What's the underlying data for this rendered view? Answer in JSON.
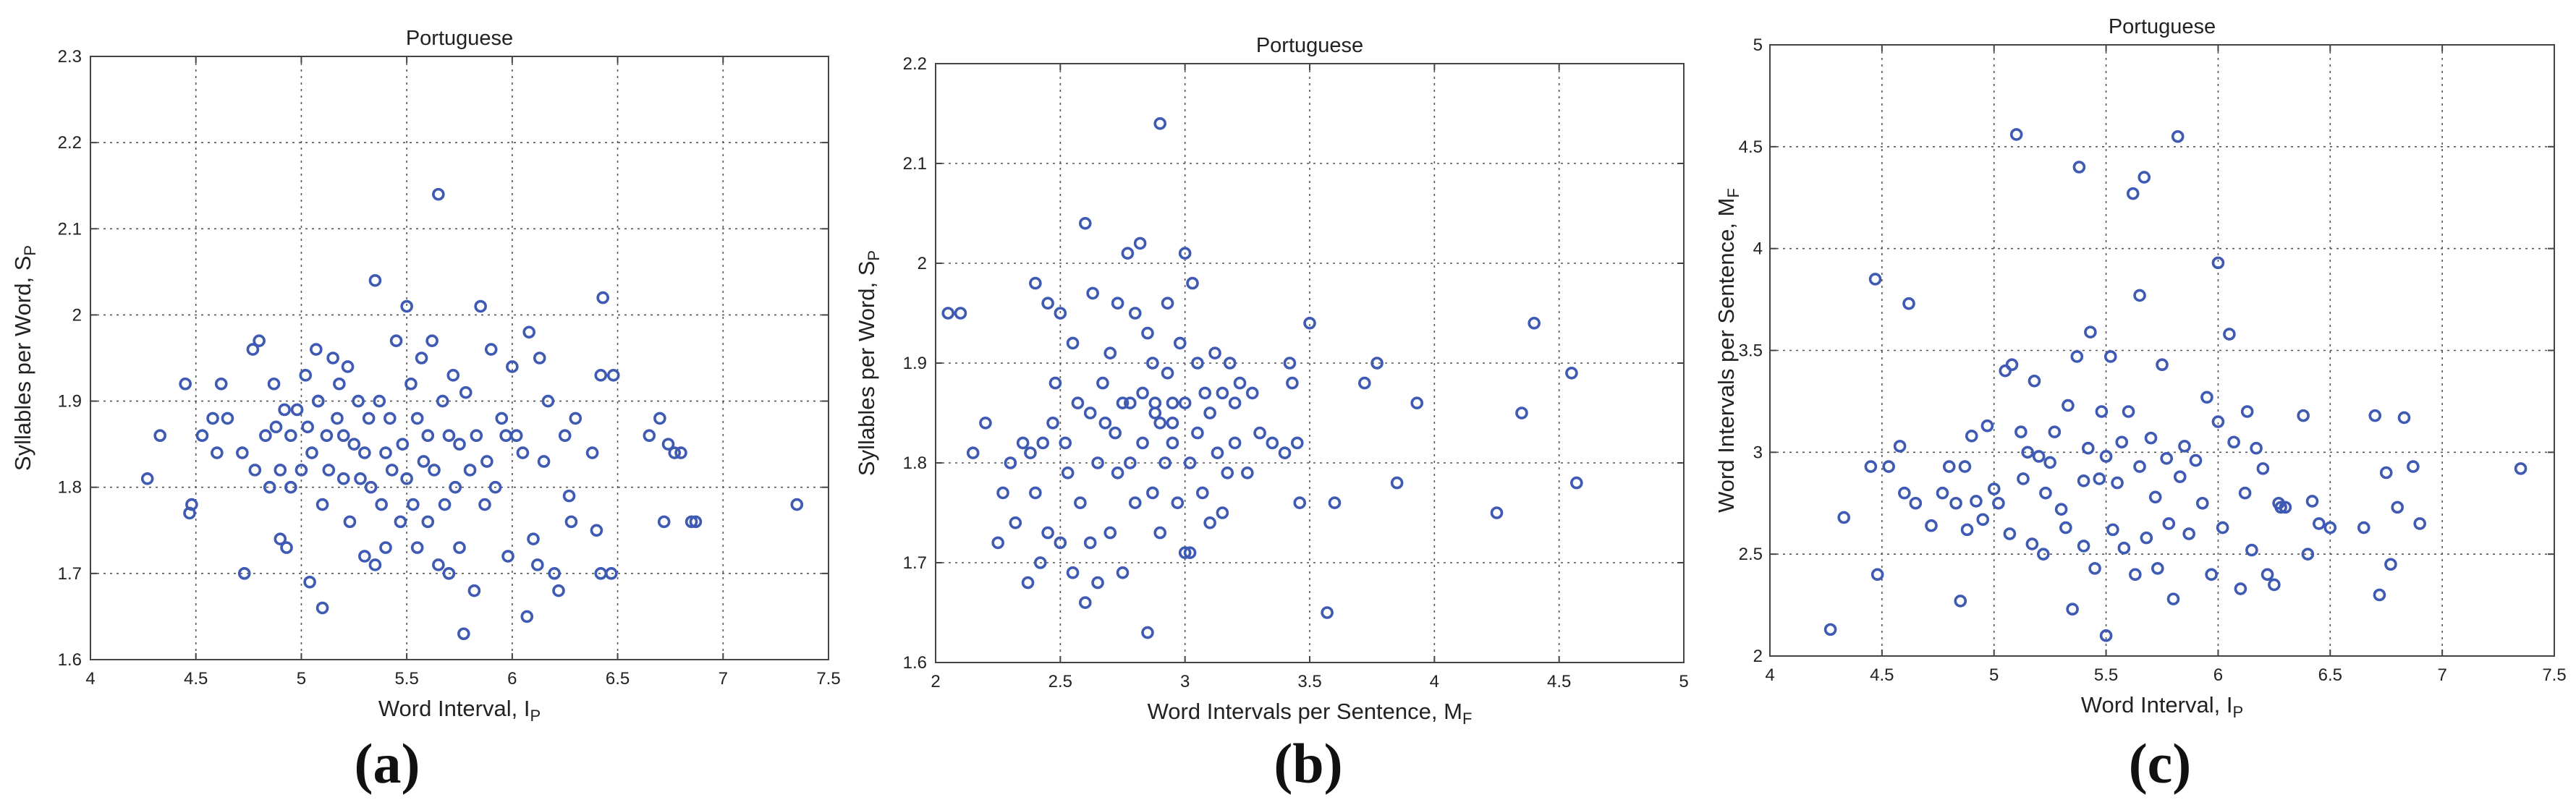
{
  "panel_labels": [
    "(a)",
    "(b)",
    "(c)"
  ],
  "chart_data": [
    {
      "type": "scatter",
      "title": "Portuguese",
      "xlabel": "Word Interval, I",
      "xlabel_sub": "P",
      "ylabel": "Syllables per Word, S",
      "ylabel_sub": "P",
      "xlim": [
        4,
        7.5
      ],
      "ylim": [
        1.6,
        2.3
      ],
      "xticks": [
        4,
        4.5,
        5,
        5.5,
        6,
        6.5,
        7,
        7.5
      ],
      "yticks": [
        1.6,
        1.7,
        1.8,
        1.9,
        2,
        2.1,
        2.2,
        2.3
      ],
      "grid": true,
      "marker_color": "#3f5ab3",
      "points": [
        [
          4.27,
          1.81
        ],
        [
          4.33,
          1.86
        ],
        [
          4.45,
          1.92
        ],
        [
          4.47,
          1.77
        ],
        [
          4.48,
          1.78
        ],
        [
          4.53,
          1.86
        ],
        [
          4.58,
          1.88
        ],
        [
          4.6,
          1.84
        ],
        [
          4.62,
          1.92
        ],
        [
          4.65,
          1.88
        ],
        [
          4.72,
          1.84
        ],
        [
          4.73,
          1.7
        ],
        [
          4.77,
          1.96
        ],
        [
          4.78,
          1.82
        ],
        [
          4.8,
          1.97
        ],
        [
          4.83,
          1.86
        ],
        [
          4.85,
          1.8
        ],
        [
          4.87,
          1.92
        ],
        [
          4.88,
          1.87
        ],
        [
          4.9,
          1.82
        ],
        [
          4.9,
          1.74
        ],
        [
          4.92,
          1.89
        ],
        [
          4.93,
          1.73
        ],
        [
          4.95,
          1.86
        ],
        [
          4.95,
          1.8
        ],
        [
          4.98,
          1.89
        ],
        [
          5.0,
          1.82
        ],
        [
          5.02,
          1.93
        ],
        [
          5.03,
          1.87
        ],
        [
          5.04,
          1.69
        ],
        [
          5.05,
          1.84
        ],
        [
          5.07,
          1.96
        ],
        [
          5.08,
          1.9
        ],
        [
          5.1,
          1.78
        ],
        [
          5.1,
          1.66
        ],
        [
          5.12,
          1.86
        ],
        [
          5.13,
          1.82
        ],
        [
          5.15,
          1.95
        ],
        [
          5.17,
          1.88
        ],
        [
          5.18,
          1.92
        ],
        [
          5.2,
          1.81
        ],
        [
          5.2,
          1.86
        ],
        [
          5.22,
          1.94
        ],
        [
          5.23,
          1.76
        ],
        [
          5.25,
          1.85
        ],
        [
          5.27,
          1.9
        ],
        [
          5.28,
          1.81
        ],
        [
          5.3,
          1.84
        ],
        [
          5.3,
          1.72
        ],
        [
          5.32,
          1.88
        ],
        [
          5.33,
          1.8
        ],
        [
          5.35,
          2.04
        ],
        [
          5.35,
          1.71
        ],
        [
          5.37,
          1.9
        ],
        [
          5.38,
          1.78
        ],
        [
          5.4,
          1.84
        ],
        [
          5.4,
          1.73
        ],
        [
          5.42,
          1.88
        ],
        [
          5.43,
          1.82
        ],
        [
          5.45,
          1.97
        ],
        [
          5.47,
          1.76
        ],
        [
          5.48,
          1.85
        ],
        [
          5.5,
          2.01
        ],
        [
          5.5,
          1.81
        ],
        [
          5.52,
          1.92
        ],
        [
          5.53,
          1.78
        ],
        [
          5.55,
          1.88
        ],
        [
          5.55,
          1.73
        ],
        [
          5.57,
          1.95
        ],
        [
          5.58,
          1.83
        ],
        [
          5.6,
          1.86
        ],
        [
          5.6,
          1.76
        ],
        [
          5.62,
          1.97
        ],
        [
          5.63,
          1.82
        ],
        [
          5.65,
          2.14
        ],
        [
          5.65,
          1.71
        ],
        [
          5.67,
          1.9
        ],
        [
          5.68,
          1.78
        ],
        [
          5.7,
          1.86
        ],
        [
          5.7,
          1.7
        ],
        [
          5.72,
          1.93
        ],
        [
          5.73,
          1.8
        ],
        [
          5.75,
          1.85
        ],
        [
          5.75,
          1.73
        ],
        [
          5.77,
          1.63
        ],
        [
          5.78,
          1.91
        ],
        [
          5.8,
          1.82
        ],
        [
          5.82,
          1.68
        ],
        [
          5.83,
          1.86
        ],
        [
          5.85,
          2.01
        ],
        [
          5.87,
          1.78
        ],
        [
          5.88,
          1.83
        ],
        [
          5.9,
          1.96
        ],
        [
          5.92,
          1.8
        ],
        [
          5.95,
          1.88
        ],
        [
          5.97,
          1.86
        ],
        [
          5.98,
          1.72
        ],
        [
          6.0,
          1.94
        ],
        [
          6.02,
          1.86
        ],
        [
          6.05,
          1.84
        ],
        [
          6.07,
          1.65
        ],
        [
          6.08,
          1.98
        ],
        [
          6.1,
          1.74
        ],
        [
          6.12,
          1.71
        ],
        [
          6.13,
          1.95
        ],
        [
          6.15,
          1.83
        ],
        [
          6.17,
          1.9
        ],
        [
          6.2,
          1.7
        ],
        [
          6.22,
          1.68
        ],
        [
          6.25,
          1.86
        ],
        [
          6.27,
          1.79
        ],
        [
          6.28,
          1.76
        ],
        [
          6.3,
          1.88
        ],
        [
          6.38,
          1.84
        ],
        [
          6.4,
          1.75
        ],
        [
          6.42,
          1.93
        ],
        [
          6.42,
          1.7
        ],
        [
          6.43,
          2.02
        ],
        [
          6.47,
          1.7
        ],
        [
          6.48,
          1.93
        ],
        [
          6.65,
          1.86
        ],
        [
          6.7,
          1.88
        ],
        [
          6.72,
          1.76
        ],
        [
          6.74,
          1.85
        ],
        [
          6.77,
          1.84
        ],
        [
          6.8,
          1.84
        ],
        [
          6.85,
          1.76
        ],
        [
          6.87,
          1.76
        ],
        [
          7.35,
          1.78
        ],
        [
          5.08,
          1.9
        ]
      ]
    },
    {
      "type": "scatter",
      "title": "Portuguese",
      "xlabel": "Word Intervals per Sentence, M",
      "xlabel_sub": "F",
      "ylabel": "Syllables per Word, S",
      "ylabel_sub": "P",
      "xlim": [
        2,
        5
      ],
      "ylim": [
        1.6,
        2.2
      ],
      "xticks": [
        2,
        2.5,
        3,
        3.5,
        4,
        4.5,
        5
      ],
      "yticks": [
        1.6,
        1.7,
        1.8,
        1.9,
        2,
        2.1,
        2.2
      ],
      "grid": true,
      "marker_color": "#3f5ab3",
      "points": [
        [
          2.1,
          1.95
        ],
        [
          2.15,
          1.81
        ],
        [
          2.2,
          1.84
        ],
        [
          2.25,
          1.72
        ],
        [
          2.27,
          1.77
        ],
        [
          2.3,
          1.8
        ],
        [
          2.32,
          1.74
        ],
        [
          2.35,
          1.82
        ],
        [
          2.37,
          1.68
        ],
        [
          2.38,
          1.81
        ],
        [
          2.4,
          1.98
        ],
        [
          2.4,
          1.77
        ],
        [
          2.42,
          1.7
        ],
        [
          2.43,
          1.82
        ],
        [
          2.45,
          1.96
        ],
        [
          2.45,
          1.73
        ],
        [
          2.47,
          1.84
        ],
        [
          2.48,
          1.88
        ],
        [
          2.5,
          1.95
        ],
        [
          2.5,
          1.72
        ],
        [
          2.52,
          1.82
        ],
        [
          2.53,
          1.79
        ],
        [
          2.55,
          1.92
        ],
        [
          2.55,
          1.69
        ],
        [
          2.57,
          1.86
        ],
        [
          2.58,
          1.76
        ],
        [
          2.6,
          2.04
        ],
        [
          2.6,
          1.66
        ],
        [
          2.62,
          1.85
        ],
        [
          2.62,
          1.72
        ],
        [
          2.63,
          1.97
        ],
        [
          2.65,
          1.8
        ],
        [
          2.65,
          1.68
        ],
        [
          2.67,
          1.88
        ],
        [
          2.68,
          1.84
        ],
        [
          2.7,
          1.91
        ],
        [
          2.7,
          1.73
        ],
        [
          2.72,
          1.83
        ],
        [
          2.73,
          1.96
        ],
        [
          2.73,
          1.79
        ],
        [
          2.75,
          1.86
        ],
        [
          2.75,
          1.69
        ],
        [
          2.77,
          2.01
        ],
        [
          2.78,
          1.86
        ],
        [
          2.78,
          1.8
        ],
        [
          2.8,
          1.95
        ],
        [
          2.8,
          1.76
        ],
        [
          2.82,
          2.02
        ],
        [
          2.83,
          1.87
        ],
        [
          2.83,
          1.82
        ],
        [
          2.85,
          1.93
        ],
        [
          2.85,
          1.63
        ],
        [
          2.87,
          1.9
        ],
        [
          2.87,
          1.77
        ],
        [
          2.88,
          1.86
        ],
        [
          2.9,
          2.14
        ],
        [
          2.9,
          1.84
        ],
        [
          2.9,
          1.73
        ],
        [
          2.92,
          1.8
        ],
        [
          2.93,
          1.96
        ],
        [
          2.93,
          1.89
        ],
        [
          2.95,
          1.86
        ],
        [
          2.95,
          1.82
        ],
        [
          2.97,
          1.76
        ],
        [
          2.98,
          1.92
        ],
        [
          3.0,
          2.01
        ],
        [
          3.0,
          1.86
        ],
        [
          3.0,
          1.71
        ],
        [
          3.02,
          1.8
        ],
        [
          3.03,
          1.98
        ],
        [
          3.05,
          1.9
        ],
        [
          3.05,
          1.83
        ],
        [
          3.07,
          1.77
        ],
        [
          3.08,
          1.87
        ],
        [
          3.1,
          1.85
        ],
        [
          3.1,
          1.74
        ],
        [
          3.12,
          1.91
        ],
        [
          3.13,
          1.81
        ],
        [
          3.15,
          1.87
        ],
        [
          3.15,
          1.75
        ],
        [
          3.17,
          1.79
        ],
        [
          3.18,
          1.9
        ],
        [
          3.2,
          1.86
        ],
        [
          3.2,
          1.82
        ],
        [
          3.22,
          1.88
        ],
        [
          3.25,
          1.79
        ],
        [
          3.27,
          1.87
        ],
        [
          3.3,
          1.83
        ],
        [
          3.35,
          1.82
        ],
        [
          3.4,
          1.81
        ],
        [
          3.42,
          1.9
        ],
        [
          3.43,
          1.88
        ],
        [
          3.45,
          1.82
        ],
        [
          3.46,
          1.76
        ],
        [
          3.5,
          1.94
        ],
        [
          3.57,
          1.65
        ],
        [
          3.6,
          1.76
        ],
        [
          3.72,
          1.88
        ],
        [
          3.77,
          1.9
        ],
        [
          3.85,
          1.78
        ],
        [
          3.93,
          1.86
        ],
        [
          4.25,
          1.75
        ],
        [
          4.35,
          1.85
        ],
        [
          4.4,
          1.94
        ],
        [
          4.55,
          1.89
        ],
        [
          4.57,
          1.78
        ],
        [
          2.05,
          1.95
        ],
        [
          2.88,
          1.85
        ],
        [
          2.95,
          1.84
        ],
        [
          3.02,
          1.71
        ]
      ]
    },
    {
      "type": "scatter",
      "title": "Portuguese",
      "xlabel": "Word Interval, I",
      "xlabel_sub": "P",
      "ylabel": "Word Intervals per Sentence, M",
      "ylabel_sub": "F",
      "xlim": [
        4,
        7.5
      ],
      "ylim": [
        2,
        5
      ],
      "xticks": [
        4,
        4.5,
        5,
        5.5,
        6,
        6.5,
        7,
        7.5
      ],
      "yticks": [
        2,
        2.5,
        3,
        3.5,
        4,
        4.5,
        5
      ],
      "grid": true,
      "marker_color": "#3f5ab3",
      "points": [
        [
          4.27,
          2.13
        ],
        [
          4.33,
          2.68
        ],
        [
          4.45,
          2.93
        ],
        [
          4.47,
          3.85
        ],
        [
          4.48,
          2.4
        ],
        [
          4.53,
          2.93
        ],
        [
          4.58,
          3.03
        ],
        [
          4.6,
          2.8
        ],
        [
          4.62,
          3.73
        ],
        [
          4.65,
          2.75
        ],
        [
          4.72,
          2.64
        ],
        [
          4.77,
          2.8
        ],
        [
          4.8,
          2.93
        ],
        [
          4.83,
          2.75
        ],
        [
          4.85,
          2.27
        ],
        [
          4.87,
          2.93
        ],
        [
          4.88,
          2.62
        ],
        [
          4.9,
          3.08
        ],
        [
          4.92,
          2.76
        ],
        [
          4.95,
          2.67
        ],
        [
          4.97,
          3.13
        ],
        [
          5.0,
          2.82
        ],
        [
          5.02,
          2.75
        ],
        [
          5.05,
          3.4
        ],
        [
          5.07,
          2.6
        ],
        [
          5.08,
          3.43
        ],
        [
          5.1,
          4.56
        ],
        [
          5.12,
          3.1
        ],
        [
          5.13,
          2.87
        ],
        [
          5.15,
          3.0
        ],
        [
          5.17,
          2.55
        ],
        [
          5.2,
          2.98
        ],
        [
          5.22,
          2.5
        ],
        [
          5.23,
          2.8
        ],
        [
          5.25,
          2.95
        ],
        [
          5.27,
          3.1
        ],
        [
          5.3,
          2.72
        ],
        [
          5.32,
          2.63
        ],
        [
          5.33,
          3.23
        ],
        [
          5.35,
          2.23
        ],
        [
          5.37,
          3.47
        ],
        [
          5.38,
          4.4
        ],
        [
          5.4,
          2.86
        ],
        [
          5.4,
          2.54
        ],
        [
          5.42,
          3.02
        ],
        [
          5.43,
          3.59
        ],
        [
          5.45,
          2.43
        ],
        [
          5.47,
          2.87
        ],
        [
          5.48,
          3.2
        ],
        [
          5.5,
          2.1
        ],
        [
          5.5,
          2.98
        ],
        [
          5.52,
          3.47
        ],
        [
          5.53,
          2.62
        ],
        [
          5.55,
          2.85
        ],
        [
          5.57,
          3.05
        ],
        [
          5.58,
          2.53
        ],
        [
          5.6,
          3.2
        ],
        [
          5.62,
          4.27
        ],
        [
          5.63,
          2.4
        ],
        [
          5.65,
          3.77
        ],
        [
          5.65,
          2.93
        ],
        [
          5.67,
          4.35
        ],
        [
          5.68,
          2.58
        ],
        [
          5.7,
          3.07
        ],
        [
          5.72,
          2.78
        ],
        [
          5.73,
          2.43
        ],
        [
          5.75,
          3.43
        ],
        [
          5.77,
          2.97
        ],
        [
          5.78,
          2.65
        ],
        [
          5.8,
          2.28
        ],
        [
          5.82,
          4.55
        ],
        [
          5.83,
          2.88
        ],
        [
          5.85,
          3.03
        ],
        [
          5.87,
          2.6
        ],
        [
          5.9,
          2.96
        ],
        [
          5.93,
          2.75
        ],
        [
          5.95,
          3.27
        ],
        [
          5.97,
          2.4
        ],
        [
          6.0,
          3.93
        ],
        [
          6.0,
          3.15
        ],
        [
          6.02,
          2.63
        ],
        [
          6.05,
          3.58
        ],
        [
          6.07,
          3.05
        ],
        [
          6.1,
          2.33
        ],
        [
          6.12,
          2.8
        ],
        [
          6.13,
          3.2
        ],
        [
          6.15,
          2.52
        ],
        [
          6.17,
          3.02
        ],
        [
          6.2,
          2.92
        ],
        [
          6.22,
          2.4
        ],
        [
          6.25,
          2.35
        ],
        [
          6.27,
          2.75
        ],
        [
          6.28,
          2.73
        ],
        [
          6.3,
          2.73
        ],
        [
          6.38,
          3.18
        ],
        [
          6.4,
          2.5
        ],
        [
          6.42,
          2.76
        ],
        [
          6.45,
          2.65
        ],
        [
          6.5,
          2.63
        ],
        [
          6.65,
          2.63
        ],
        [
          6.7,
          3.18
        ],
        [
          6.72,
          2.3
        ],
        [
          6.75,
          2.9
        ],
        [
          6.77,
          2.45
        ],
        [
          6.8,
          2.73
        ],
        [
          6.83,
          3.17
        ],
        [
          6.87,
          2.93
        ],
        [
          6.9,
          2.65
        ],
        [
          7.35,
          2.92
        ],
        [
          5.18,
          3.35
        ]
      ]
    }
  ]
}
